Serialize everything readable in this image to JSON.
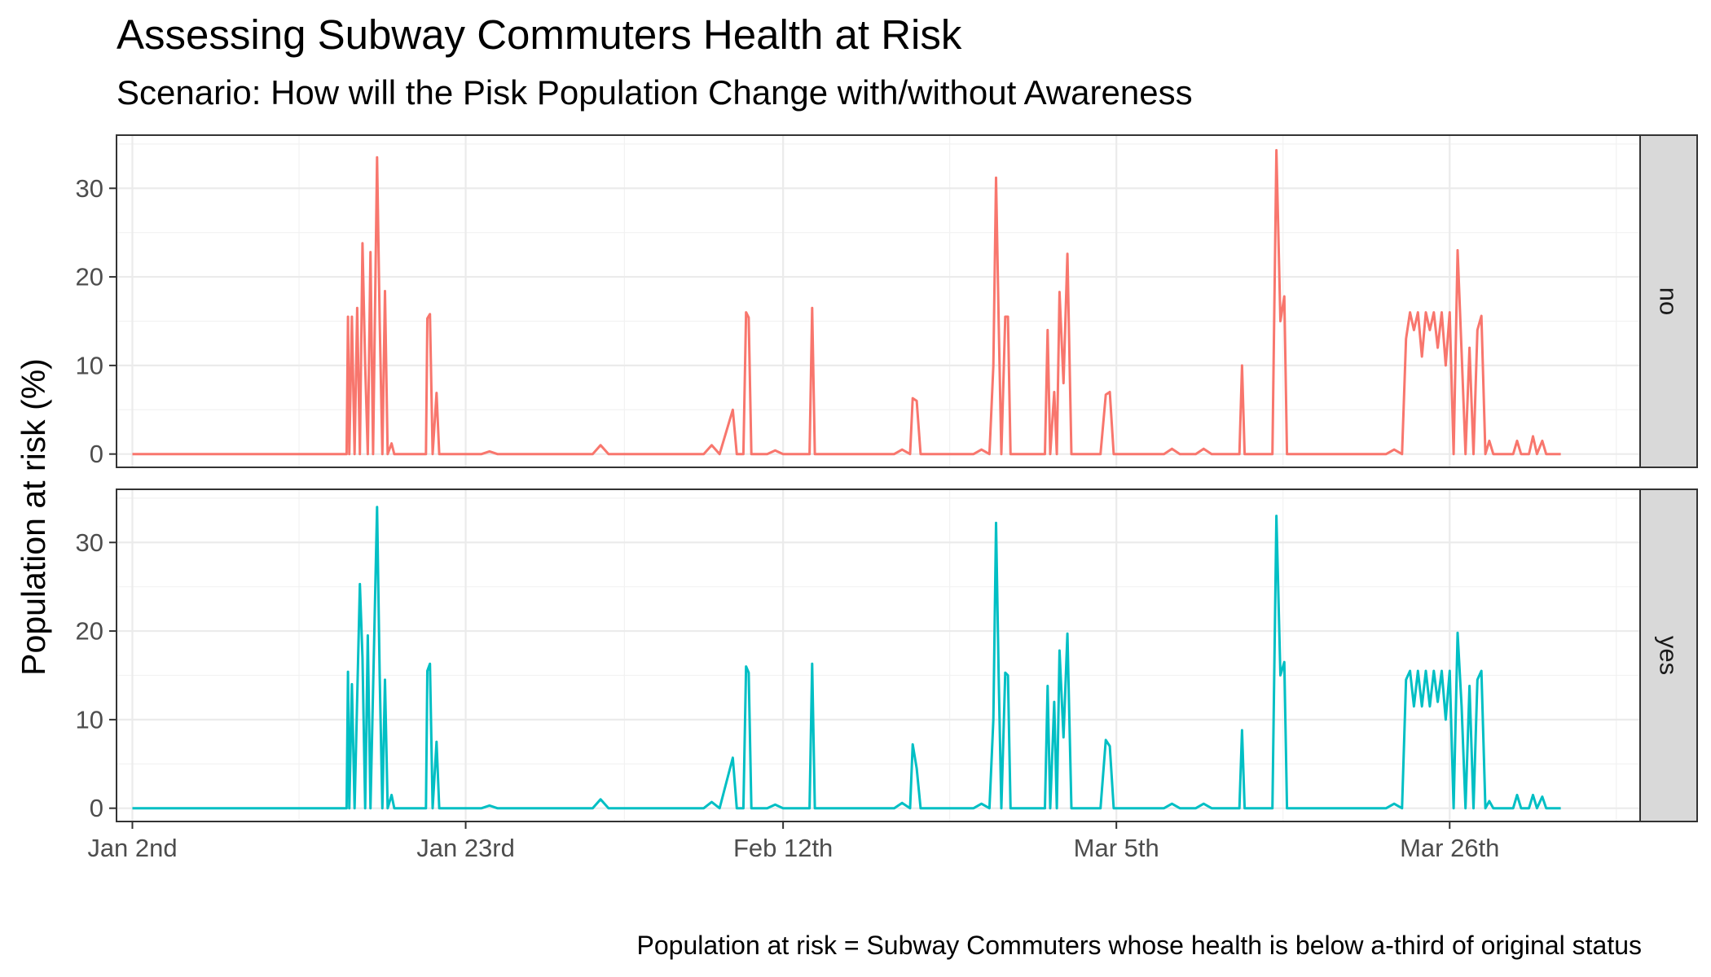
{
  "chart_data": {
    "type": "line",
    "title": "Assessing Subway Commuters Health at Risk",
    "subtitle": "Scenario: How will the Pisk Population Change with/without Awareness",
    "ylabel": "Population at risk (%)",
    "xlabel": "",
    "caption": "Population at risk = Subway Commuters whose health is below a-third of original status",
    "ylim": [
      -1.5,
      36
    ],
    "y_ticks": [
      0,
      10,
      20,
      30
    ],
    "xlim": [
      "2018-01-01",
      "2018-04-07"
    ],
    "x_ticks": [
      {
        "date": "2018-01-02",
        "label": "Jan 2nd"
      },
      {
        "date": "2018-01-23",
        "label": "Jan 23rd"
      },
      {
        "date": "2018-02-12",
        "label": "Feb 12th"
      },
      {
        "date": "2018-03-05",
        "label": "Mar 5th"
      },
      {
        "date": "2018-03-26",
        "label": "Mar 26th"
      }
    ],
    "grid": true,
    "facet": "rows",
    "series": [
      {
        "name": "no",
        "color": "#F8766D",
        "points": [
          [
            "2018-01-02",
            0
          ],
          [
            "2018-01-15 12:00",
            0
          ],
          [
            "2018-01-15 14:00",
            15.5
          ],
          [
            "2018-01-15 16:00",
            0
          ],
          [
            "2018-01-15 20:00",
            15.5
          ],
          [
            "2018-01-16 00:00",
            0
          ],
          [
            "2018-01-16 04:00",
            16.5
          ],
          [
            "2018-01-16 08:00",
            0
          ],
          [
            "2018-01-16 12:00",
            23.8
          ],
          [
            "2018-01-16 16:00",
            10
          ],
          [
            "2018-01-16 20:00",
            0
          ],
          [
            "2018-01-17 00:00",
            22.8
          ],
          [
            "2018-01-17 04:00",
            0
          ],
          [
            "2018-01-17 10:00",
            33.5
          ],
          [
            "2018-01-17 14:00",
            15
          ],
          [
            "2018-01-17 18:00",
            0
          ],
          [
            "2018-01-17 22:00",
            18.4
          ],
          [
            "2018-01-18 02:00",
            0
          ],
          [
            "2018-01-18 08:00",
            1.2
          ],
          [
            "2018-01-18 12:00",
            0
          ],
          [
            "2018-01-20 12:00",
            0
          ],
          [
            "2018-01-20 14:00",
            15.3
          ],
          [
            "2018-01-20 18:00",
            15.8
          ],
          [
            "2018-01-20 22:00",
            0
          ],
          [
            "2018-01-21 04:00",
            6.9
          ],
          [
            "2018-01-21 08:00",
            0
          ],
          [
            "2018-01-24",
            0
          ],
          [
            "2018-01-24 12:00",
            0.3
          ],
          [
            "2018-01-25",
            0
          ],
          [
            "2018-01-31",
            0
          ],
          [
            "2018-01-31 12:00",
            1
          ],
          [
            "2018-02-01",
            0
          ],
          [
            "2018-02-07",
            0
          ],
          [
            "2018-02-07 12:00",
            1
          ],
          [
            "2018-02-08",
            0
          ],
          [
            "2018-02-08 20:00",
            5
          ],
          [
            "2018-02-09 02:00",
            0
          ],
          [
            "2018-02-09 12:00",
            0
          ],
          [
            "2018-02-09 16:00",
            16
          ],
          [
            "2018-02-09 20:00",
            15.4
          ],
          [
            "2018-02-10 00:00",
            0
          ],
          [
            "2018-02-11",
            0
          ],
          [
            "2018-02-11 12:00",
            0.4
          ],
          [
            "2018-02-12",
            0
          ],
          [
            "2018-02-13 16:00",
            0
          ],
          [
            "2018-02-13 20:00",
            16.5
          ],
          [
            "2018-02-14 00:00",
            0
          ],
          [
            "2018-02-19",
            0
          ],
          [
            "2018-02-19 12:00",
            0.5
          ],
          [
            "2018-02-20",
            0
          ],
          [
            "2018-02-20 04:00",
            6.3
          ],
          [
            "2018-02-20 10:00",
            6
          ],
          [
            "2018-02-20 16:00",
            0
          ],
          [
            "2018-02-24",
            0
          ],
          [
            "2018-02-24 12:00",
            0.5
          ],
          [
            "2018-02-25",
            0
          ],
          [
            "2018-02-25 06:00",
            10
          ],
          [
            "2018-02-25 10:00",
            31.2
          ],
          [
            "2018-02-25 14:00",
            15
          ],
          [
            "2018-02-25 18:00",
            0
          ],
          [
            "2018-02-26 00:00",
            15.5
          ],
          [
            "2018-02-26 04:00",
            15.5
          ],
          [
            "2018-02-26 08:00",
            0
          ],
          [
            "2018-02-28 12:00",
            0
          ],
          [
            "2018-02-28 16:00",
            14
          ],
          [
            "2018-02-28 20:00",
            0
          ],
          [
            "2018-03-01 02:00",
            7
          ],
          [
            "2018-03-01 06:00",
            0
          ],
          [
            "2018-03-01 10:00",
            18.3
          ],
          [
            "2018-03-01 16:00",
            8
          ],
          [
            "2018-03-01 22:00",
            22.6
          ],
          [
            "2018-03-02 04:00",
            0
          ],
          [
            "2018-03-04",
            0
          ],
          [
            "2018-03-04 08:00",
            6.7
          ],
          [
            "2018-03-04 14:00",
            7
          ],
          [
            "2018-03-04 20:00",
            0
          ],
          [
            "2018-03-08",
            0
          ],
          [
            "2018-03-08 12:00",
            0.6
          ],
          [
            "2018-03-09",
            0
          ],
          [
            "2018-03-10",
            0
          ],
          [
            "2018-03-10 12:00",
            0.6
          ],
          [
            "2018-03-11",
            0
          ],
          [
            "2018-03-12 18:00",
            0
          ],
          [
            "2018-03-12 22:00",
            10
          ],
          [
            "2018-03-13 02:00",
            0
          ],
          [
            "2018-03-14 20:00",
            0
          ],
          [
            "2018-03-15 02:00",
            34.3
          ],
          [
            "2018-03-15 08:00",
            15
          ],
          [
            "2018-03-15 14:00",
            17.8
          ],
          [
            "2018-03-15 18:00",
            0
          ],
          [
            "2018-03-22",
            0
          ],
          [
            "2018-03-22 12:00",
            0.5
          ],
          [
            "2018-03-23",
            0
          ],
          [
            "2018-03-23 06:00",
            13
          ],
          [
            "2018-03-23 12:00",
            16
          ],
          [
            "2018-03-23 18:00",
            14
          ],
          [
            "2018-03-24 00:00",
            16
          ],
          [
            "2018-03-24 06:00",
            11
          ],
          [
            "2018-03-24 12:00",
            16
          ],
          [
            "2018-03-24 18:00",
            14
          ],
          [
            "2018-03-25 00:00",
            16
          ],
          [
            "2018-03-25 06:00",
            12
          ],
          [
            "2018-03-25 12:00",
            16
          ],
          [
            "2018-03-25 18:00",
            10
          ],
          [
            "2018-03-26 00:00",
            16
          ],
          [
            "2018-03-26 06:00",
            0
          ],
          [
            "2018-03-26 12:00",
            23
          ],
          [
            "2018-03-26 18:00",
            11.5
          ],
          [
            "2018-03-27 00:00",
            0
          ],
          [
            "2018-03-27 06:00",
            12
          ],
          [
            "2018-03-27 12:00",
            0
          ],
          [
            "2018-03-27 18:00",
            14
          ],
          [
            "2018-03-28 00:00",
            15.6
          ],
          [
            "2018-03-28 06:00",
            0
          ],
          [
            "2018-03-28 12:00",
            1.5
          ],
          [
            "2018-03-28 18:00",
            0
          ],
          [
            "2018-03-30",
            0
          ],
          [
            "2018-03-30 06:00",
            1.5
          ],
          [
            "2018-03-30 12:00",
            0
          ],
          [
            "2018-03-31",
            0
          ],
          [
            "2018-03-31 06:00",
            2
          ],
          [
            "2018-03-31 12:00",
            0
          ],
          [
            "2018-03-31 20:00",
            1.5
          ],
          [
            "2018-04-01 02:00",
            0
          ],
          [
            "2018-04-02",
            0
          ]
        ]
      },
      {
        "name": "yes",
        "color": "#00BFC4",
        "points": [
          [
            "2018-01-02",
            0
          ],
          [
            "2018-01-15 12:00",
            0
          ],
          [
            "2018-01-15 14:00",
            15.4
          ],
          [
            "2018-01-15 16:00",
            0
          ],
          [
            "2018-01-15 20:00",
            14
          ],
          [
            "2018-01-16 00:00",
            0
          ],
          [
            "2018-01-16 08:00",
            25.3
          ],
          [
            "2018-01-16 12:00",
            17
          ],
          [
            "2018-01-16 16:00",
            0
          ],
          [
            "2018-01-16 20:00",
            19.5
          ],
          [
            "2018-01-17 00:00",
            0
          ],
          [
            "2018-01-17 10:00",
            34
          ],
          [
            "2018-01-17 14:00",
            15
          ],
          [
            "2018-01-17 18:00",
            0
          ],
          [
            "2018-01-17 22:00",
            14.5
          ],
          [
            "2018-01-18 02:00",
            0
          ],
          [
            "2018-01-18 08:00",
            1.5
          ],
          [
            "2018-01-18 12:00",
            0
          ],
          [
            "2018-01-20 12:00",
            0
          ],
          [
            "2018-01-20 14:00",
            15.5
          ],
          [
            "2018-01-20 18:00",
            16.3
          ],
          [
            "2018-01-20 22:00",
            0
          ],
          [
            "2018-01-21 04:00",
            7.5
          ],
          [
            "2018-01-21 08:00",
            0
          ],
          [
            "2018-01-24",
            0
          ],
          [
            "2018-01-24 12:00",
            0.3
          ],
          [
            "2018-01-25",
            0
          ],
          [
            "2018-01-31",
            0
          ],
          [
            "2018-01-31 12:00",
            1
          ],
          [
            "2018-02-01",
            0
          ],
          [
            "2018-02-07",
            0
          ],
          [
            "2018-02-07 12:00",
            0.7
          ],
          [
            "2018-02-08",
            0
          ],
          [
            "2018-02-08 20:00",
            5.7
          ],
          [
            "2018-02-09 02:00",
            0
          ],
          [
            "2018-02-09 12:00",
            0
          ],
          [
            "2018-02-09 16:00",
            16
          ],
          [
            "2018-02-09 20:00",
            15.3
          ],
          [
            "2018-02-10 00:00",
            0
          ],
          [
            "2018-02-11",
            0
          ],
          [
            "2018-02-11 12:00",
            0.4
          ],
          [
            "2018-02-12",
            0
          ],
          [
            "2018-02-13 16:00",
            0
          ],
          [
            "2018-02-13 20:00",
            16.3
          ],
          [
            "2018-02-14 00:00",
            0
          ],
          [
            "2018-02-19",
            0
          ],
          [
            "2018-02-19 12:00",
            0.6
          ],
          [
            "2018-02-20",
            0
          ],
          [
            "2018-02-20 04:00",
            7.2
          ],
          [
            "2018-02-20 10:00",
            4.5
          ],
          [
            "2018-02-20 16:00",
            0
          ],
          [
            "2018-02-24",
            0
          ],
          [
            "2018-02-24 12:00",
            0.5
          ],
          [
            "2018-02-25",
            0
          ],
          [
            "2018-02-25 06:00",
            10
          ],
          [
            "2018-02-25 10:00",
            32.2
          ],
          [
            "2018-02-25 14:00",
            15
          ],
          [
            "2018-02-25 18:00",
            0
          ],
          [
            "2018-02-26 00:00",
            15.3
          ],
          [
            "2018-02-26 04:00",
            15
          ],
          [
            "2018-02-26 08:00",
            0
          ],
          [
            "2018-02-28 12:00",
            0
          ],
          [
            "2018-02-28 16:00",
            13.8
          ],
          [
            "2018-02-28 20:00",
            0
          ],
          [
            "2018-03-01 02:00",
            12
          ],
          [
            "2018-03-01 06:00",
            0
          ],
          [
            "2018-03-01 10:00",
            17.8
          ],
          [
            "2018-03-01 16:00",
            8
          ],
          [
            "2018-03-01 22:00",
            19.7
          ],
          [
            "2018-03-02 04:00",
            0
          ],
          [
            "2018-03-04",
            0
          ],
          [
            "2018-03-04 08:00",
            7.7
          ],
          [
            "2018-03-04 14:00",
            7
          ],
          [
            "2018-03-04 20:00",
            0
          ],
          [
            "2018-03-08",
            0
          ],
          [
            "2018-03-08 12:00",
            0.5
          ],
          [
            "2018-03-09",
            0
          ],
          [
            "2018-03-10",
            0
          ],
          [
            "2018-03-10 12:00",
            0.5
          ],
          [
            "2018-03-11",
            0
          ],
          [
            "2018-03-12 18:00",
            0
          ],
          [
            "2018-03-12 22:00",
            8.8
          ],
          [
            "2018-03-13 02:00",
            0
          ],
          [
            "2018-03-14 20:00",
            0
          ],
          [
            "2018-03-15 02:00",
            33
          ],
          [
            "2018-03-15 08:00",
            15
          ],
          [
            "2018-03-15 14:00",
            16.5
          ],
          [
            "2018-03-15 18:00",
            0
          ],
          [
            "2018-03-22",
            0
          ],
          [
            "2018-03-22 12:00",
            0.5
          ],
          [
            "2018-03-23",
            0
          ],
          [
            "2018-03-23 06:00",
            14.5
          ],
          [
            "2018-03-23 12:00",
            15.5
          ],
          [
            "2018-03-23 18:00",
            11.5
          ],
          [
            "2018-03-24 00:00",
            15.5
          ],
          [
            "2018-03-24 06:00",
            11.5
          ],
          [
            "2018-03-24 12:00",
            15.5
          ],
          [
            "2018-03-24 18:00",
            11.5
          ],
          [
            "2018-03-25 00:00",
            15.5
          ],
          [
            "2018-03-25 06:00",
            12
          ],
          [
            "2018-03-25 12:00",
            15.5
          ],
          [
            "2018-03-25 18:00",
            10
          ],
          [
            "2018-03-26 00:00",
            15.5
          ],
          [
            "2018-03-26 06:00",
            0
          ],
          [
            "2018-03-26 12:00",
            19.8
          ],
          [
            "2018-03-26 18:00",
            11.5
          ],
          [
            "2018-03-27 00:00",
            0
          ],
          [
            "2018-03-27 06:00",
            13.8
          ],
          [
            "2018-03-27 12:00",
            0
          ],
          [
            "2018-03-27 18:00",
            14.5
          ],
          [
            "2018-03-28 00:00",
            15.5
          ],
          [
            "2018-03-28 06:00",
            0
          ],
          [
            "2018-03-28 12:00",
            0.8
          ],
          [
            "2018-03-28 18:00",
            0
          ],
          [
            "2018-03-30",
            0
          ],
          [
            "2018-03-30 06:00",
            1.5
          ],
          [
            "2018-03-30 12:00",
            0
          ],
          [
            "2018-03-31",
            0
          ],
          [
            "2018-03-31 06:00",
            1.5
          ],
          [
            "2018-03-31 12:00",
            0
          ],
          [
            "2018-03-31 20:00",
            1.3
          ],
          [
            "2018-04-01 02:00",
            0
          ],
          [
            "2018-04-02",
            0
          ]
        ]
      }
    ]
  }
}
